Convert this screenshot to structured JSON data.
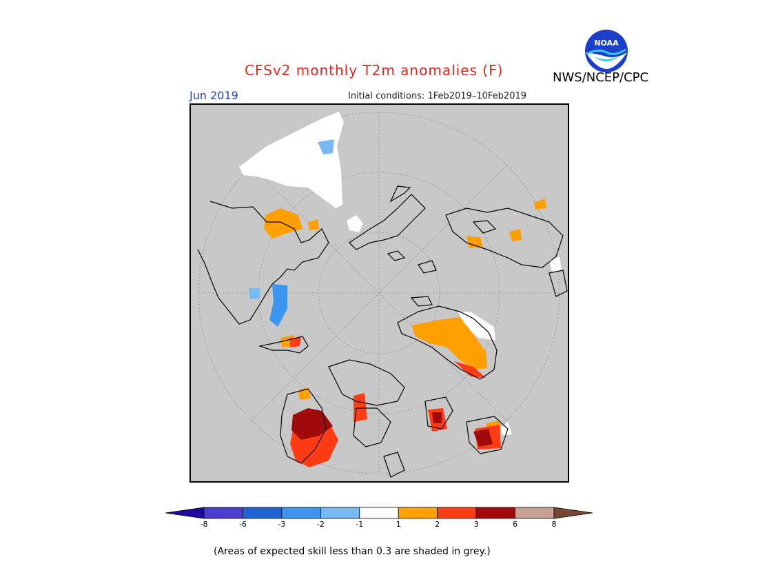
{
  "header": {
    "title": "CFSv2 monthly T2m anomalies (F)",
    "month": "Jun 2019",
    "initial_conditions": "Initial conditions: 1Feb2019–10Feb2019",
    "agency": "NWS/NCEP/CPC",
    "logo_text": "NOAA"
  },
  "legend": {
    "ticks": [
      "-8",
      "-6",
      "-3",
      "-2",
      "-1",
      "1",
      "2",
      "3",
      "6",
      "8"
    ],
    "bins": [
      {
        "range": "< -8",
        "color": "#1e0aa0"
      },
      {
        "range": "-8 to -6",
        "color": "#4a3ccc"
      },
      {
        "range": "-6 to -3",
        "color": "#1e64d2"
      },
      {
        "range": "-3 to -2",
        "color": "#3c96f0"
      },
      {
        "range": "-2 to -1",
        "color": "#78b9f5"
      },
      {
        "range": "-1 to 1",
        "color": "#ffffff"
      },
      {
        "range": "1 to 2",
        "color": "#ffa000"
      },
      {
        "range": "2 to 3",
        "color": "#ff3c14"
      },
      {
        "range": "3 to 6",
        "color": "#a00a0a"
      },
      {
        "range": "6 to 8",
        "color": "#c8a096"
      },
      {
        "range": "> 8",
        "color": "#784632"
      }
    ]
  },
  "map": {
    "projection": "polar-stereographic",
    "background_color": "#c8c8c8",
    "region": "Northern Hemisphere"
  },
  "footnote": "(Areas of expected skill less than 0.3 are shaded in grey.)"
}
